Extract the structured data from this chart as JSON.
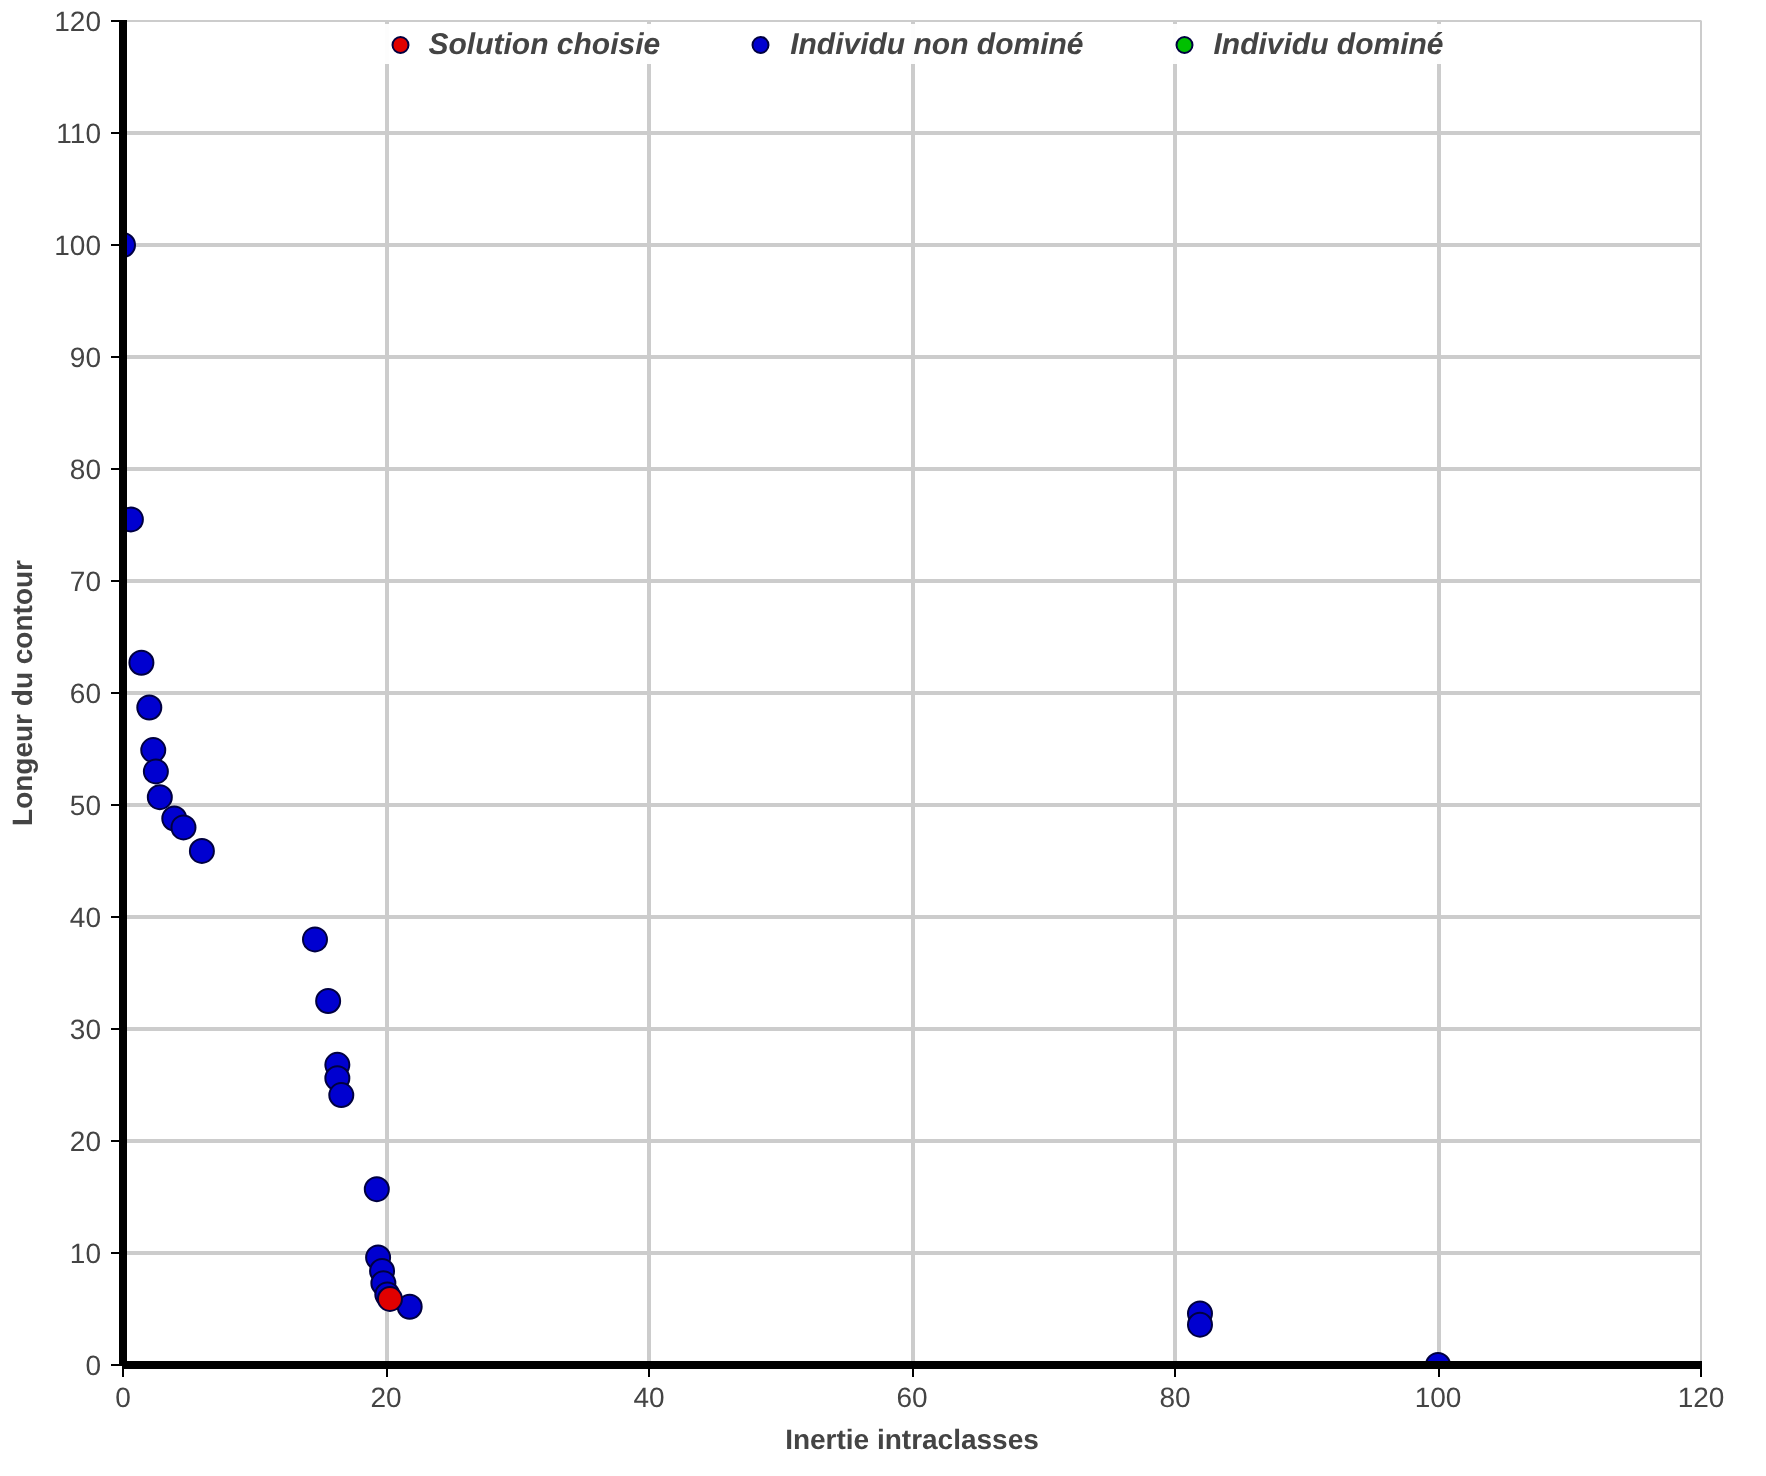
{
  "chart_data": {
    "type": "scatter",
    "xlabel": "Inertie intraclasses",
    "ylabel": "Longeur du contour",
    "xlim": [
      0,
      120
    ],
    "ylim": [
      0,
      120
    ],
    "xticks": [
      0,
      20,
      40,
      60,
      80,
      100,
      120
    ],
    "yticks": [
      0,
      10,
      20,
      30,
      40,
      50,
      60,
      70,
      80,
      90,
      100,
      110,
      120
    ],
    "grid": true,
    "legend": "top",
    "marker": "circle",
    "series": [
      {
        "name": "Solution choisie",
        "color": "#e00000",
        "x": [
          20.3
        ],
        "values": [
          5.9
        ]
      },
      {
        "name": "Individu non dominé",
        "color": "#0000d0",
        "x": [
          0,
          0.6,
          1.4,
          2,
          2.3,
          2.5,
          2.8,
          3.9,
          4.6,
          6,
          14.6,
          15.6,
          16.3,
          16.3,
          16.6,
          19.3,
          19.4,
          19.7,
          19.8,
          20.1,
          21.8,
          81.9,
          81.9,
          100
        ],
        "values": [
          100,
          75.5,
          62.7,
          58.7,
          54.9,
          53,
          50.7,
          48.8,
          48,
          45.9,
          38,
          32.5,
          26.8,
          25.6,
          24.1,
          15.7,
          9.6,
          8.4,
          7.3,
          6.3,
          5.2,
          4.6,
          3.6,
          0
        ]
      },
      {
        "name": "Individu dominé",
        "color": "#00c000"
      }
    ]
  }
}
